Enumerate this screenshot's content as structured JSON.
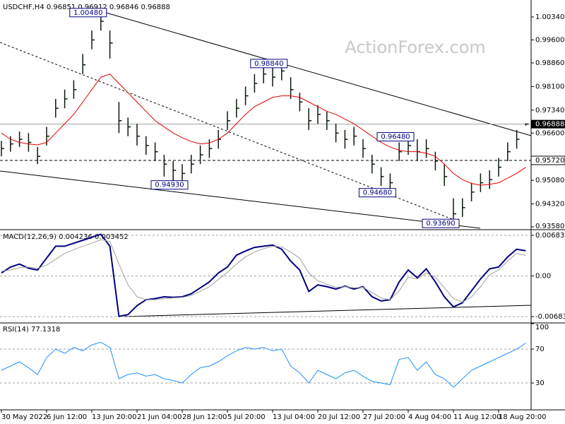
{
  "watermark": "ActionForex.com",
  "chart_data": [
    {
      "type": "ohlc",
      "title": "USDCHF,H4 0.96851 0.96912 0.96846 0.96888",
      "color": "#0a1a0a",
      "categories": [
        "30 May 2022",
        null,
        null,
        null,
        null,
        "6 Jun 12:00",
        null,
        null,
        null,
        null,
        "13 Jun 20:00",
        null,
        null,
        null,
        null,
        "21 Jun 04:00",
        null,
        null,
        null,
        null,
        "28 Jun 12:00",
        null,
        null,
        null,
        null,
        "5 Jul 20:00",
        null,
        null,
        null,
        null,
        "13 Jul 04:00",
        null,
        null,
        null,
        null,
        "20 Jul 12:00",
        null,
        null,
        null,
        null,
        "27 Jul 20:00",
        null,
        null,
        null,
        null,
        "4 Aug 04:00",
        null,
        null,
        null,
        null,
        "11 Aug 12:00",
        null,
        null,
        null,
        null,
        "18 Aug 20:00",
        null,
        null,
        null
      ],
      "high": [
        0.9635,
        0.965,
        0.9665,
        0.966,
        0.9615,
        0.968,
        0.977,
        0.98,
        0.983,
        0.9915,
        0.999,
        1.0048,
        0.999,
        0.976,
        0.971,
        0.969,
        0.965,
        0.963,
        0.959,
        0.957,
        0.956,
        0.959,
        0.962,
        0.964,
        0.967,
        0.973,
        0.977,
        0.981,
        0.985,
        0.9875,
        0.987,
        0.9884,
        0.984,
        0.979,
        0.974,
        0.975,
        0.973,
        0.969,
        0.967,
        0.968,
        0.964,
        0.959,
        0.955,
        0.953,
        0.963,
        0.9648,
        0.964,
        0.964,
        0.96,
        0.956,
        0.945,
        0.945,
        0.95,
        0.953,
        0.954,
        0.958,
        0.963,
        0.967,
        0.9691
      ],
      "low": [
        0.9585,
        0.96,
        0.9615,
        0.96,
        0.956,
        0.962,
        0.971,
        0.974,
        0.977,
        0.985,
        0.993,
        0.999,
        0.99,
        0.966,
        0.965,
        0.962,
        0.959,
        0.957,
        0.952,
        0.9505,
        0.9493,
        0.953,
        0.956,
        0.958,
        0.961,
        0.967,
        0.971,
        0.975,
        0.979,
        0.982,
        0.981,
        0.983,
        0.977,
        0.973,
        0.967,
        0.969,
        0.967,
        0.963,
        0.961,
        0.962,
        0.958,
        0.953,
        0.949,
        0.9468,
        0.957,
        0.959,
        0.957,
        0.958,
        0.954,
        0.949,
        0.9369,
        0.939,
        0.944,
        0.947,
        0.948,
        0.952,
        0.957,
        0.961,
        0.9684
      ],
      "close": [
        0.961,
        0.9625,
        0.964,
        0.963,
        0.9585,
        0.965,
        0.974,
        0.977,
        0.98,
        0.988,
        0.996,
        1.002,
        0.995,
        0.97,
        0.968,
        0.965,
        0.962,
        0.96,
        0.956,
        0.954,
        0.953,
        0.956,
        0.959,
        0.961,
        0.964,
        0.97,
        0.974,
        0.978,
        0.982,
        0.985,
        0.984,
        0.986,
        0.98,
        0.976,
        0.97,
        0.972,
        0.97,
        0.966,
        0.964,
        0.965,
        0.961,
        0.956,
        0.952,
        0.95,
        0.96,
        0.962,
        0.96,
        0.961,
        0.957,
        0.952,
        0.94,
        0.942,
        0.947,
        0.95,
        0.951,
        0.955,
        0.96,
        0.964,
        0.9689
      ],
      "ma": {
        "color": "#e00000",
        "values": [
          0.966,
          0.964,
          0.963,
          0.9625,
          0.9622,
          0.963,
          0.966,
          0.969,
          0.972,
          0.976,
          0.98,
          0.984,
          0.985,
          0.982,
          0.979,
          0.976,
          0.973,
          0.97,
          0.968,
          0.966,
          0.9645,
          0.9633,
          0.9625,
          0.9628,
          0.964,
          0.966,
          0.969,
          0.972,
          0.9745,
          0.976,
          0.9775,
          0.978,
          0.978,
          0.9775,
          0.976,
          0.9745,
          0.973,
          0.972,
          0.9705,
          0.969,
          0.967,
          0.965,
          0.963,
          0.9615,
          0.9605,
          0.96,
          0.96,
          0.9595,
          0.9585,
          0.956,
          0.953,
          0.951,
          0.9498,
          0.9492,
          0.9495,
          0.95,
          0.9515,
          0.953,
          0.955
        ]
      },
      "ylim": [
        0.93535,
        1.0084
      ],
      "yticks": [
        {
          "value": 1.0034,
          "label": "1.00340"
        },
        {
          "value": 0.996,
          "label": "0.99600"
        },
        {
          "value": 0.9886,
          "label": "0.98860"
        },
        {
          "value": 0.981,
          "label": "0.98100"
        },
        {
          "value": 0.9734,
          "label": "0.97340"
        },
        {
          "value": 0.966,
          "label": "0.96600"
        },
        {
          "value": 0.9508,
          "label": "0.95080"
        },
        {
          "value": 0.9432,
          "label": "0.94320"
        },
        {
          "value": 0.9358,
          "label": "0.93580"
        }
      ],
      "annotations": [
        {
          "value": 1.0048,
          "label": "1.00480"
        },
        {
          "value": 0.9884,
          "label": "0.98840"
        },
        {
          "value": 0.9493,
          "label": "0.94930"
        },
        {
          "value": 0.9468,
          "label": "0.94680"
        },
        {
          "value": 0.9648,
          "label": "0.96480"
        },
        {
          "value": 0.9369,
          "label": "0.93690"
        }
      ],
      "price_line": {
        "value": 0.96888,
        "label": "0.96888"
      },
      "level": {
        "value": 0.9572,
        "label": "0.95720"
      }
    },
    {
      "type": "line",
      "title": "MACD(12,26,9) 0.004236 0.003452",
      "grid": true,
      "series": [
        {
          "color": "#000080",
          "values": [
            0.0005,
            0.0015,
            0.002,
            0.0013,
            0.001,
            0.003,
            0.005,
            0.005,
            0.0055,
            0.006,
            0.0065,
            0.007,
            0.005,
            -0.0068,
            -0.0065,
            -0.005,
            -0.004,
            -0.0038,
            -0.0035,
            -0.0036,
            -0.0035,
            -0.003,
            -0.002,
            -0.001,
            0.0005,
            0.0015,
            0.0035,
            0.0042,
            0.0048,
            0.005,
            0.0052,
            0.0045,
            0.0025,
            0.001,
            -0.0026,
            -0.0015,
            -0.0018,
            -0.0022,
            -0.0017,
            -0.0022,
            -0.0018,
            -0.0035,
            -0.0042,
            -0.004,
            -0.001,
            0.001,
            -0.0003,
            0.0012,
            -0.001,
            -0.0035,
            -0.0052,
            -0.0045,
            -0.0025,
            -0.0005,
            0.0012,
            0.0015,
            0.0032,
            0.0045,
            0.004236
          ]
        },
        {
          "color": "#a0a0a0",
          "values": [
            0.0008,
            0.001,
            0.0014,
            0.0015,
            0.0013,
            0.0018,
            0.0028,
            0.0038,
            0.0044,
            0.005,
            0.0055,
            0.0061,
            0.0058,
            0.002,
            -0.0015,
            -0.0035,
            -0.004,
            -0.004,
            -0.0038,
            -0.0037,
            -0.0036,
            -0.0033,
            -0.0026,
            -0.0018,
            -0.0006,
            0.0006,
            0.002,
            0.0032,
            0.004,
            0.0046,
            0.005,
            0.0049,
            0.004,
            0.003,
            0.0005,
            -0.0008,
            -0.0014,
            -0.0019,
            -0.0018,
            -0.002,
            -0.0019,
            -0.0028,
            -0.0037,
            -0.004,
            -0.0025,
            -0.0002,
            -0.0005,
            0.0005,
            -0.0002,
            -0.002,
            -0.0038,
            -0.0044,
            -0.0035,
            -0.0018,
            0.0002,
            0.001,
            0.0025,
            0.0038,
            0.003452
          ]
        }
      ],
      "ylim": [
        -0.007662,
        0.007545
      ],
      "yticks": [
        0.006832,
        {
          "value": 0,
          "label": "0.00"
        },
        -0.00683
      ]
    },
    {
      "type": "line",
      "title": "RSI(14) 77.1318",
      "grid": true,
      "series": [
        {
          "color": "#1e90ff",
          "values": [
            45,
            50,
            55,
            48,
            40,
            60,
            70,
            65,
            72,
            68,
            75,
            78,
            72,
            35,
            40,
            42,
            38,
            40,
            35,
            33,
            30,
            40,
            48,
            50,
            55,
            62,
            68,
            72,
            70,
            72,
            68,
            70,
            50,
            42,
            30,
            45,
            40,
            35,
            42,
            45,
            38,
            32,
            30,
            28,
            58,
            60,
            45,
            55,
            40,
            35,
            25,
            35,
            45,
            50,
            55,
            60,
            65,
            70,
            77.1318
          ]
        }
      ],
      "ylim": [
        0,
        100
      ],
      "yticks": [
        100,
        70,
        30
      ]
    }
  ]
}
